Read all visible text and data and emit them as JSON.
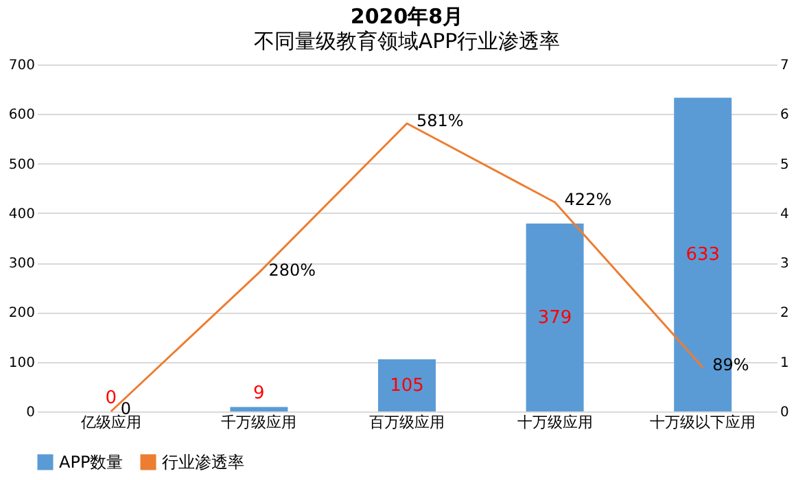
{
  "chart_data": {
    "type": "bar",
    "title": "2020年8月",
    "subtitle": "不同量级教育领域APP行业渗透率",
    "categories": [
      "亿级应用",
      "千万级应用",
      "百万级应用",
      "十万级应用",
      "十万级以下应用"
    ],
    "series": [
      {
        "name": "APP数量",
        "color": "#5b9bd5",
        "values": [
          0,
          9,
          105,
          379,
          633
        ],
        "value_labels": [
          "0",
          "9",
          "105",
          "379",
          "633"
        ]
      },
      {
        "name": "行业渗透率",
        "type": "line",
        "axis": "y2",
        "color": "#ed7d31",
        "values": [
          0,
          2.8,
          5.81,
          4.22,
          0.89
        ],
        "value_labels": [
          "0",
          "280%",
          "581%",
          "422%",
          "89%"
        ]
      }
    ],
    "ylim": [
      0,
      700
    ],
    "yticks": [
      0,
      100,
      200,
      300,
      400,
      500,
      600,
      700
    ],
    "y2lim": [
      0,
      7
    ],
    "y2ticks": [
      0,
      1,
      2,
      3,
      4,
      5,
      6,
      7
    ],
    "grid": "y",
    "legend": "bottom",
    "marker": "none",
    "line_style": "solid"
  }
}
